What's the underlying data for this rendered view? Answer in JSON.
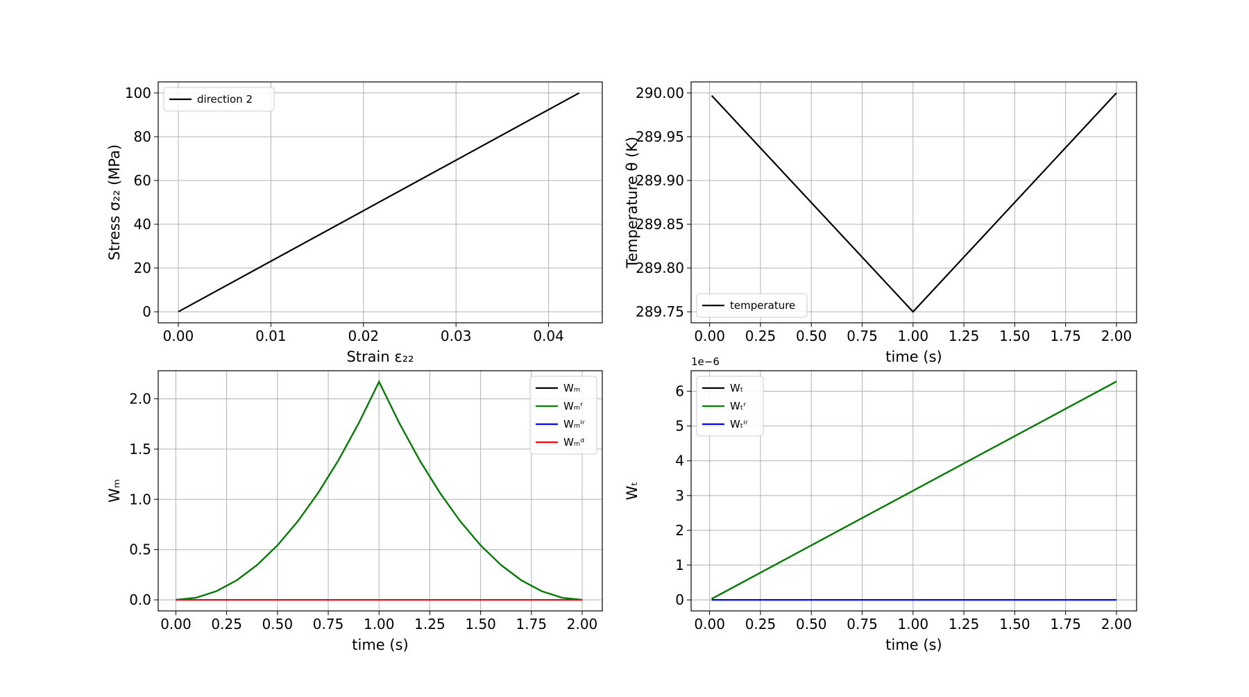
{
  "chart_data": [
    {
      "type": "line",
      "xlabel": "Strain ε₂₂",
      "ylabel": "Stress σ₂₂ (MPa)",
      "x": [
        0,
        0.0433
      ],
      "series": [
        {
          "name": "direction 2",
          "color": "#000000",
          "values": [
            0,
            100
          ]
        }
      ],
      "xlim": [
        -0.00217,
        0.0458
      ],
      "ylim": [
        -5.05,
        105.05
      ],
      "xticks": [
        {
          "value": 0,
          "label": "0.00"
        },
        0.01,
        0.02,
        0.03,
        0.04
      ],
      "yticks": [
        0,
        20,
        40,
        60,
        80,
        100
      ],
      "grid": true,
      "legend": "upper left"
    },
    {
      "type": "line",
      "xlabel": "time (s)",
      "ylabel": "Temperature θ (K)",
      "x": [
        0.01,
        1.0,
        2.0
      ],
      "series": [
        {
          "name": "temperature",
          "color": "#000000",
          "values": [
            289.997,
            289.75,
            290.0
          ]
        }
      ],
      "xlim": [
        -0.091,
        2.099
      ],
      "ylim": [
        289.7374,
        290.0126
      ],
      "xticks": [
        {
          "value": 0,
          "label": "0.00"
        },
        0.25,
        {
          "value": 0.5,
          "label": "0.50"
        },
        0.75,
        {
          "value": 1,
          "label": "1.00"
        },
        1.25,
        {
          "value": 1.5,
          "label": "1.50"
        },
        1.75,
        {
          "value": 2,
          "label": "2.00"
        }
      ],
      "yticks": [
        {
          "value": 289.75,
          "label": "289.75"
        },
        {
          "value": 289.8,
          "label": "289.80"
        },
        289.85,
        {
          "value": 289.9,
          "label": "289.90"
        },
        289.95,
        {
          "value": 290,
          "label": "290.00"
        }
      ],
      "grid": true,
      "legend": "lower left"
    },
    {
      "type": "line",
      "xlabel": "time (s)",
      "ylabel": "Wₘ",
      "x": [
        0,
        0.1,
        0.2,
        0.3,
        0.4,
        0.5,
        0.6,
        0.7,
        0.8,
        0.9,
        1.0,
        1.1,
        1.2,
        1.3,
        1.4,
        1.5,
        1.6,
        1.7,
        1.8,
        1.9,
        2.0
      ],
      "series": [
        {
          "name": "Wₘ",
          "color": "#000000",
          "values": [
            0,
            0.0217,
            0.0868,
            0.1953,
            0.3472,
            0.5425,
            0.7812,
            1.0633,
            1.3888,
            1.7577,
            2.17,
            1.7577,
            1.3888,
            1.0633,
            0.7812,
            0.5425,
            0.3472,
            0.1953,
            0.0868,
            0.0217,
            0
          ]
        },
        {
          "name": "Wₘʳ",
          "color": "#007f00",
          "values": [
            0,
            0.0217,
            0.0868,
            0.1953,
            0.3472,
            0.5425,
            0.7812,
            1.0633,
            1.3888,
            1.7577,
            2.17,
            1.7577,
            1.3888,
            1.0633,
            0.7812,
            0.5425,
            0.3472,
            0.1953,
            0.0868,
            0.0217,
            0
          ]
        },
        {
          "name": "Wₘⁱʳ",
          "color": "#0000ff",
          "values": [
            0,
            0,
            0,
            0,
            0,
            0,
            0,
            0,
            0,
            0,
            0,
            0,
            0,
            0,
            0,
            0,
            0,
            0,
            0,
            0,
            0
          ]
        },
        {
          "name": "Wₘᵈ",
          "color": "#ff0000",
          "values": [
            0,
            0,
            0,
            0,
            0,
            0,
            0,
            0,
            0,
            0,
            0,
            0,
            0,
            0,
            0,
            0,
            0,
            0,
            0,
            0,
            0
          ]
        }
      ],
      "xlim": [
        -0.087,
        2.099
      ],
      "ylim": [
        -0.11,
        2.28
      ],
      "xticks": [
        {
          "value": 0,
          "label": "0.00"
        },
        0.25,
        {
          "value": 0.5,
          "label": "0.50"
        },
        0.75,
        {
          "value": 1,
          "label": "1.00"
        },
        1.25,
        {
          "value": 1.5,
          "label": "1.50"
        },
        1.75,
        {
          "value": 2,
          "label": "2.00"
        }
      ],
      "yticks": [
        {
          "value": 0,
          "label": "0.0"
        },
        0.5,
        {
          "value": 1,
          "label": "1.0"
        },
        1.5,
        {
          "value": 2,
          "label": "2.0"
        }
      ],
      "grid": true,
      "legend": "upper right"
    },
    {
      "type": "line",
      "xlabel": "time (s)",
      "ylabel": "Wₜ",
      "offset_label": "1e−6",
      "x": [
        0.01,
        2.0
      ],
      "series": [
        {
          "name": "Wₜ",
          "color": "#000000",
          "values": [
            0.03,
            6.28
          ]
        },
        {
          "name": "Wₜʳ",
          "color": "#007f00",
          "values": [
            0.03,
            6.28
          ]
        },
        {
          "name": "Wₜⁱʳ",
          "color": "#0000ff",
          "values": [
            0,
            0
          ]
        }
      ],
      "xlim": [
        -0.091,
        2.099
      ],
      "ylim": [
        -0.317,
        6.59
      ],
      "xticks": [
        {
          "value": 0,
          "label": "0.00"
        },
        0.25,
        {
          "value": 0.5,
          "label": "0.50"
        },
        0.75,
        {
          "value": 1,
          "label": "1.00"
        },
        1.25,
        {
          "value": 1.5,
          "label": "1.50"
        },
        1.75,
        {
          "value": 2,
          "label": "2.00"
        }
      ],
      "yticks": [
        0,
        1,
        2,
        3,
        4,
        5,
        6
      ],
      "grid": true,
      "legend": "upper left"
    }
  ]
}
